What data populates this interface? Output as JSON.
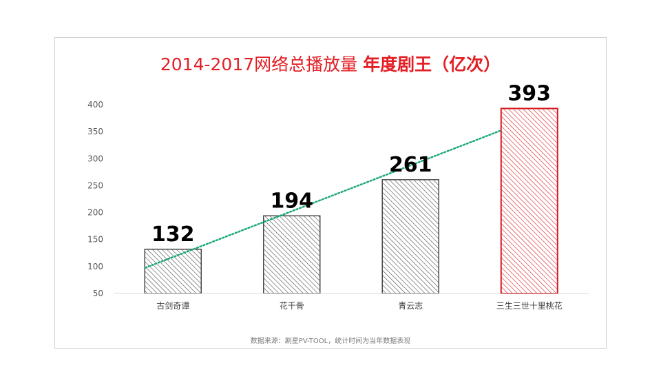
{
  "title": {
    "main": "2014-2017网络总播放量 ",
    "highlight": "年度剧王（亿次）"
  },
  "source": "数据来源：剧星PV-TOOL，统计时间为当年数据表现",
  "colors": {
    "title": "#e31e24",
    "bar_default": "#4a4a4a",
    "bar_highlight": "#d71920",
    "trendline": "#1aa87b",
    "axis": "#d9d9d9",
    "label": "#000000"
  },
  "chart_data": {
    "type": "bar",
    "categories": [
      "古剑奇谭",
      "花千骨",
      "青云志",
      "三生三世十里桃花"
    ],
    "values": [
      132,
      194,
      261,
      393
    ],
    "data_labels": [
      "132",
      "194",
      "261",
      "393"
    ],
    "highlight_index": 3,
    "pattern": "diagonal-hatch",
    "ylim": [
      50,
      400
    ],
    "yticks": [
      50,
      100,
      150,
      200,
      250,
      300,
      350,
      400
    ],
    "grid": false,
    "trendline": {
      "type": "linear",
      "style": "dotted"
    }
  }
}
